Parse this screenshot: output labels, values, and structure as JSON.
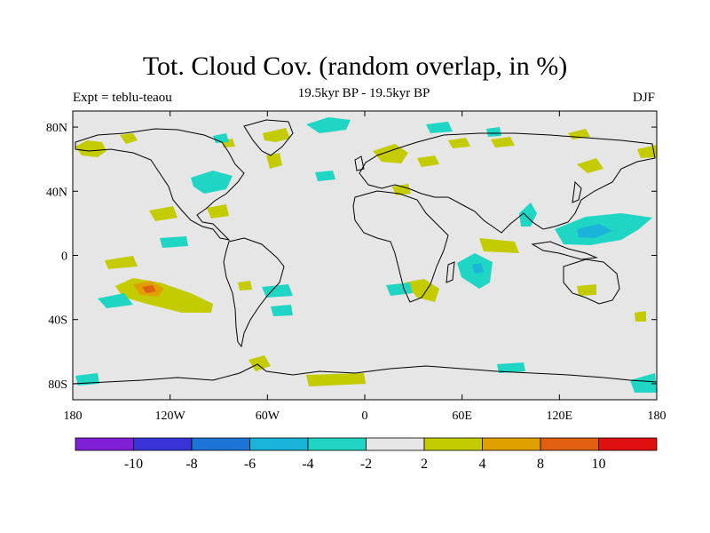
{
  "header": {
    "title": "Tot. Cloud Cov. (random overlap, in %)",
    "subtitle": "19.5kyr BP - 19.5kyr BP",
    "left_label": "Expt = teblu-teaou",
    "right_label": "DJF"
  },
  "map": {
    "projection": "cylindrical-equidistant",
    "lon_range": [
      -180,
      180
    ],
    "lat_range": [
      -90,
      90
    ],
    "background_color": "#e6e6e6",
    "coastline_color": "#000000",
    "lat_ticks": [
      {
        "value": 80,
        "label": "80N"
      },
      {
        "value": 40,
        "label": "40N"
      },
      {
        "value": 0,
        "label": "0"
      },
      {
        "value": -40,
        "label": "40S"
      },
      {
        "value": -80,
        "label": "80S"
      }
    ],
    "lon_ticks": [
      {
        "value": -180,
        "label": "180"
      },
      {
        "value": -120,
        "label": "120W"
      },
      {
        "value": -60,
        "label": "60W"
      },
      {
        "value": 0,
        "label": "0"
      },
      {
        "value": 60,
        "label": "60E"
      },
      {
        "value": 120,
        "label": "120E"
      },
      {
        "value": 180,
        "label": "180"
      }
    ]
  },
  "colorbar": {
    "colors": [
      "#7f1fd6",
      "#3a33d8",
      "#1b74d6",
      "#1ab3d9",
      "#1fd6c4",
      "#e6e6e6",
      "#c4cc00",
      "#e0a000",
      "#e06010",
      "#e01010"
    ],
    "labels": [
      {
        "boundary": 1,
        "text": "-10"
      },
      {
        "boundary": 2,
        "text": "-8"
      },
      {
        "boundary": 3,
        "text": "-6"
      },
      {
        "boundary": 4,
        "text": "-4"
      },
      {
        "boundary": 5,
        "text": "-2"
      },
      {
        "boundary": 6,
        "text": "2"
      },
      {
        "boundary": 7,
        "text": "4"
      },
      {
        "boundary": 8,
        "text": "8"
      },
      {
        "boundary": 9,
        "text": "10"
      }
    ]
  }
}
